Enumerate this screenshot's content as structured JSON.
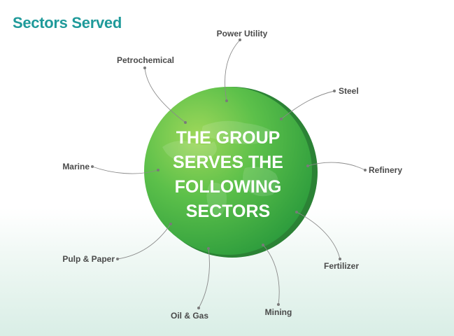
{
  "title": "Sectors Served",
  "center": {
    "lines": [
      "THE GROUP",
      "SERVES THE",
      "FOLLOWING",
      "SECTORS"
    ]
  },
  "colors": {
    "title": "#1f9a9a",
    "circle_light": "#8fd14f",
    "circle_mid": "#4db848",
    "circle_dark": "#2e9a3e",
    "connector": "#8a8a8a",
    "label": "#4a4a4a"
  },
  "sectors": [
    "Power Utility",
    "Petrochemical",
    "Steel",
    "Marine",
    "Refinery",
    "Pulp & Paper",
    "Fertilizer",
    "Oil & Gas",
    "Mining"
  ]
}
